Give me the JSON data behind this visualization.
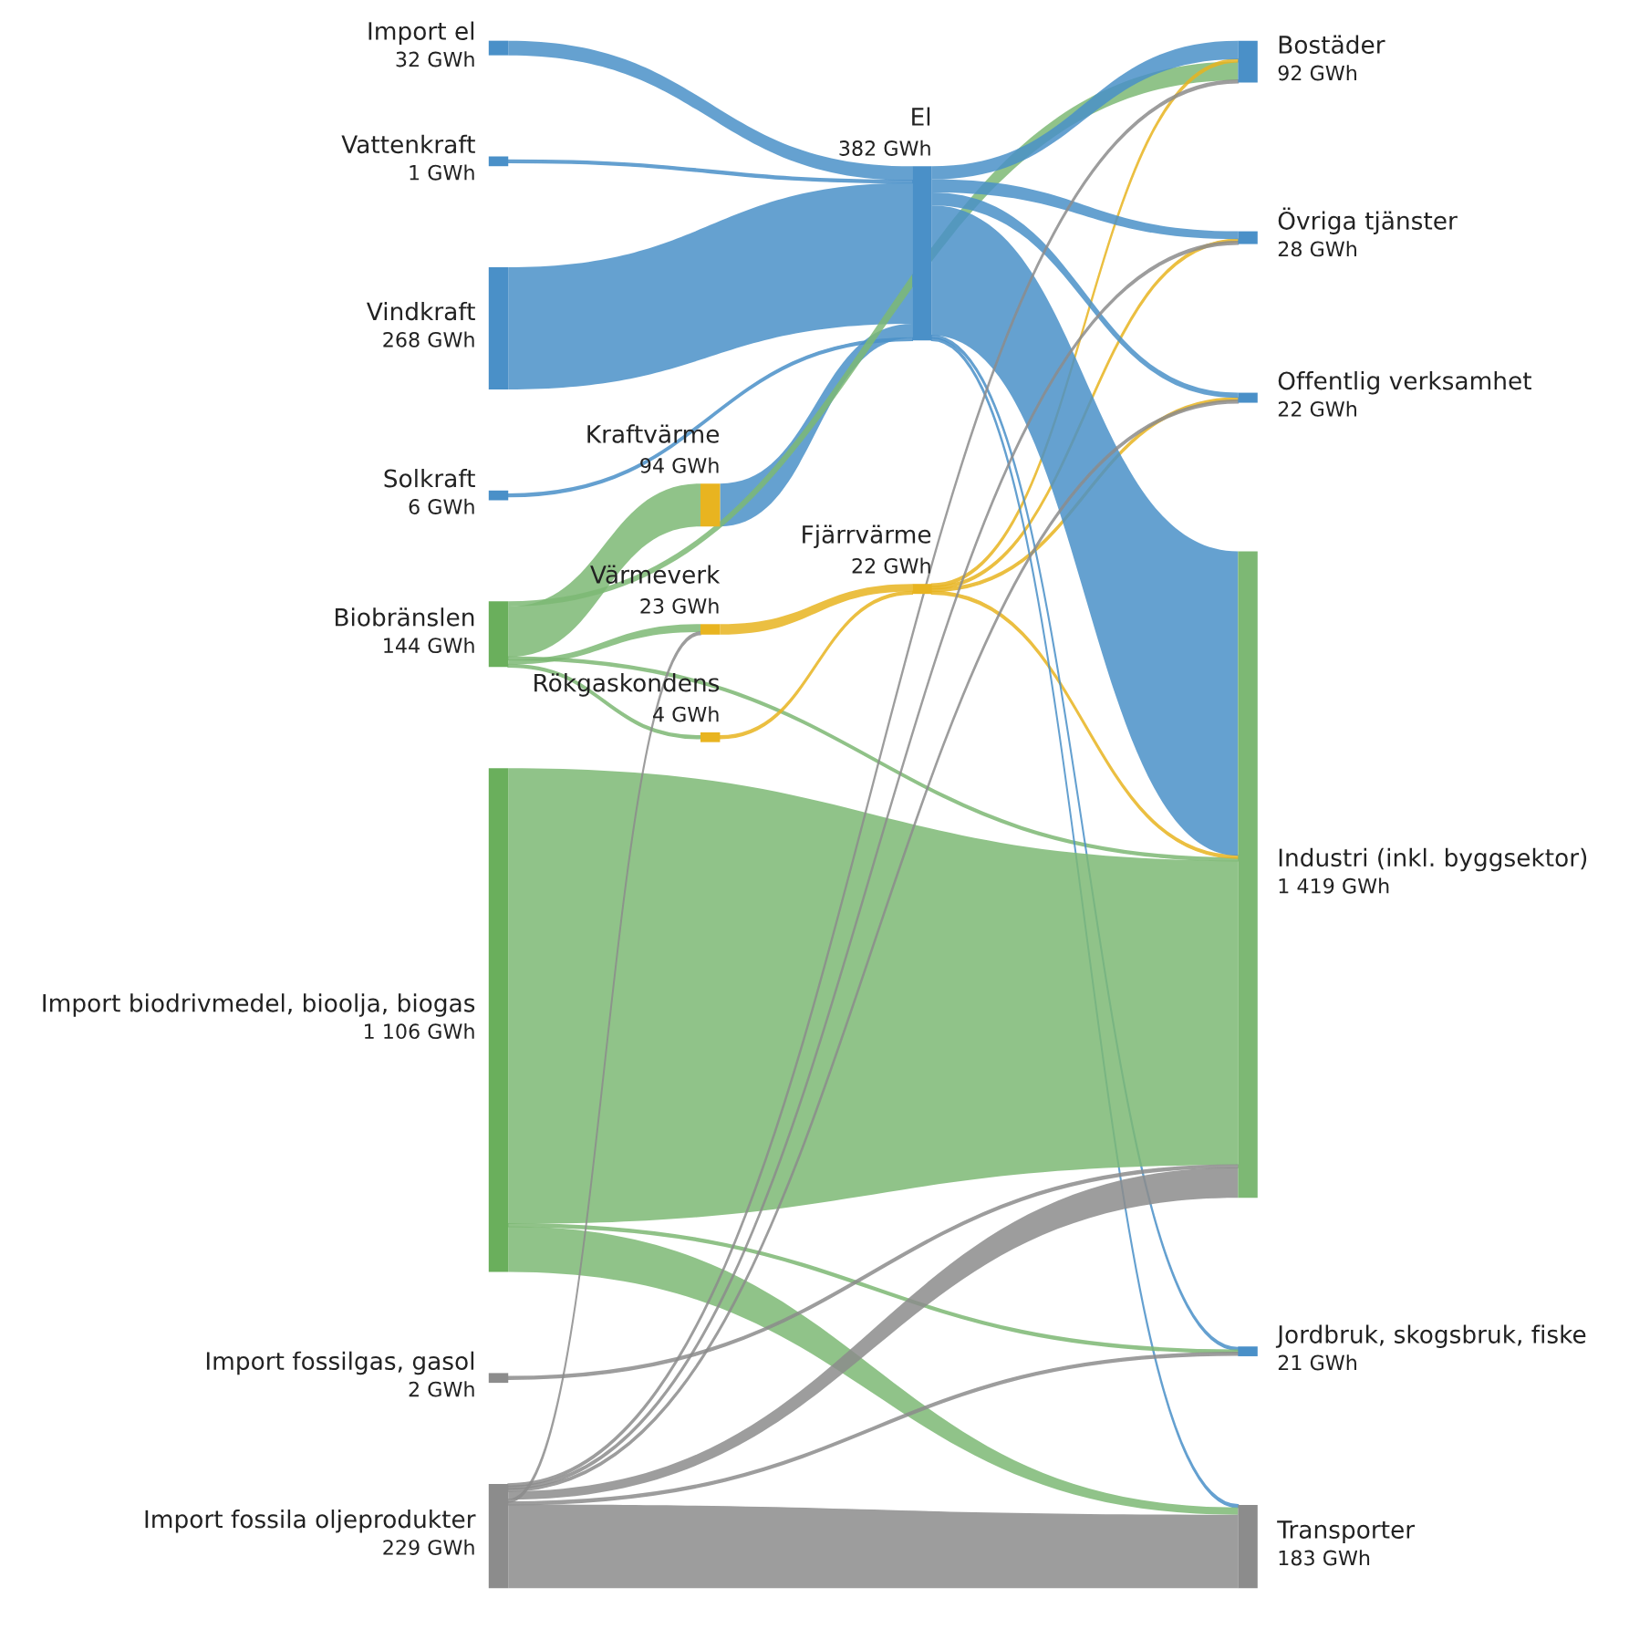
{
  "chart_data": {
    "type": "other",
    "categories": [
      "Import el",
      "Vattenkraft",
      "Vindkraft",
      "Solkraft",
      "Biobränslen",
      "Import biodrivmedel, bioolja, biogas",
      "Import fossilgas, gasol",
      "Import fossila oljeprodukter",
      "Kraftvärme",
      "Rökgaskondens",
      "Värmeverk",
      "El",
      "Fjärrvärme",
      "Bostäder",
      "Övriga tjänster",
      "Offentlig verksamhet",
      "Industri (inkl. byggsektor)",
      "Jordbruk, skogsbruk, fiske",
      "Transporter"
    ],
    "values": [
      32,
      1,
      268,
      6,
      144,
      1106,
      2,
      229,
      94,
      4,
      23,
      382,
      22,
      92,
      28,
      22,
      1419,
      21,
      183
    ],
    "value_labels": [
      "32 GWh",
      "1 GWh",
      "268 GWh",
      "6 GWh",
      "144 GWh",
      "1 106 GWh",
      "2 GWh",
      "229 GWh",
      "94 GWh",
      "4 GWh",
      "23 GWh",
      "382 GWh",
      "22 GWh",
      "92 GWh",
      "28 GWh",
      "22 GWh",
      "1 419 GWh",
      "21 GWh",
      "183 GWh"
    ],
    "colors": [
      "#4a90c8",
      "#4a90c8",
      "#4a90c8",
      "#4a90c8",
      "#6aaf5c",
      "#6aaf5c",
      "#8c8c8c",
      "#8c8c8c",
      "#e8b420",
      "#e8b420",
      "#e8b420",
      "#4a90c8",
      "#e8b420",
      "#4a90c8",
      "#4a90c8",
      "#4a90c8",
      "#7db874",
      "#4a90c8",
      "#8c8c8c"
    ]
  }
}
